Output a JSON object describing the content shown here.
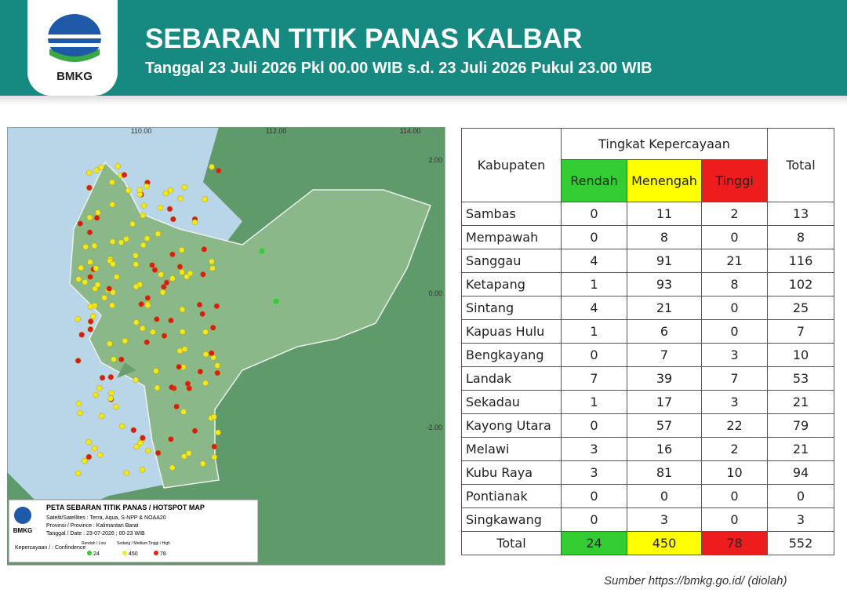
{
  "header": {
    "logo": "BMKG",
    "title": "SEBARAN TITIK PANAS KALBAR",
    "subtitle": "Tanggal 23 Juli 2026 Pkl 00.00 WIB s.d. 23 Juli 2026 Pukul 23.00 WIB"
  },
  "map": {
    "lon_labels": [
      "110.00",
      "112.00",
      "114.00"
    ],
    "lat_labels": [
      "2.00",
      "0.00",
      "-2.00"
    ],
    "legend": {
      "logo": "BMKG",
      "title": "PETA SEBARAN TITIK PANAS / HOTSPOT MAP",
      "lines": [
        "Satelit/Satellites : Terra, Aqua, S-NPP & NOAA20",
        "Provinsi / Province : Kalimantan Barat",
        "Tanggal / Date : 23-07-2026 ; 00-23 WIB"
      ],
      "confidence": "Kepercayaan / : Confindence",
      "low": "Rendah / Low",
      "medium": "Sedang / Medium",
      "high": "Tinggi / High",
      "counts": [
        24,
        450,
        78
      ]
    }
  },
  "table": {
    "columns": {
      "region": "Kabupaten",
      "group": "Tingkat Kepercayaan",
      "low": "Rendah",
      "medium": "Menengah",
      "high": "Tinggi",
      "total": "Total"
    },
    "rows": [
      [
        "Sambas",
        0,
        11,
        2,
        13
      ],
      [
        "Mempawah",
        0,
        8,
        0,
        8
      ],
      [
        "Sanggau",
        4,
        91,
        21,
        116
      ],
      [
        "Ketapang",
        1,
        93,
        8,
        102
      ],
      [
        "Sintang",
        4,
        21,
        0,
        25
      ],
      [
        "Kapuas Hulu",
        1,
        6,
        0,
        7
      ],
      [
        "Bengkayang",
        0,
        7,
        3,
        10
      ],
      [
        "Landak",
        7,
        39,
        7,
        53
      ],
      [
        "Sekadau",
        1,
        17,
        3,
        21
      ],
      [
        "Kayong Utara",
        0,
        57,
        22,
        79
      ],
      [
        "Melawi",
        3,
        16,
        2,
        21
      ],
      [
        "Kubu Raya",
        3,
        81,
        10,
        94
      ],
      [
        "Pontianak",
        0,
        0,
        0,
        0
      ],
      [
        "Singkawang",
        0,
        3,
        0,
        3
      ]
    ],
    "total_row": [
      "Total",
      24,
      450,
      78,
      552
    ]
  },
  "source": "Sumber https://bmkg.go.id/ (diolah)"
}
